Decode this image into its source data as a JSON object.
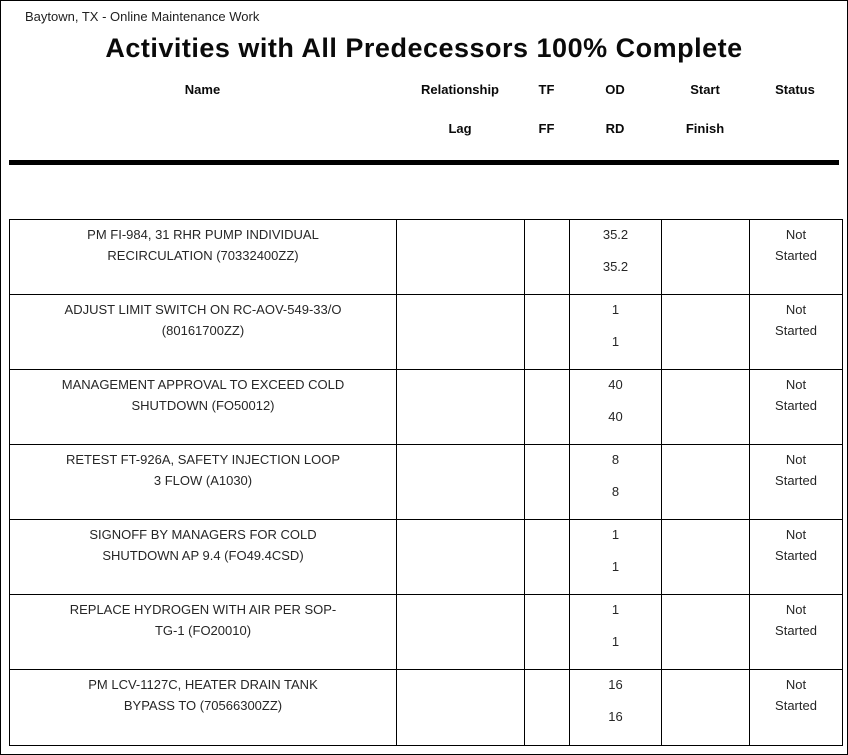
{
  "page": {
    "report_header": "Baytown, TX - Online Maintenance Work",
    "title": "Activities with All Predecessors 100% Complete"
  },
  "table": {
    "headers": [
      {
        "top": "Name",
        "bottom": ""
      },
      {
        "top": "Relationship",
        "bottom": "Lag"
      },
      {
        "top": "TF",
        "bottom": "FF"
      },
      {
        "top": "OD",
        "bottom": "RD"
      },
      {
        "top": "Start",
        "bottom": "Finish"
      },
      {
        "top": "Status",
        "bottom": ""
      }
    ],
    "rows": [
      {
        "name1": "PM FI-984, 31 RHR PUMP INDIVIDUAL",
        "name2": "RECIRCULATION (70332400ZZ)",
        "od": "35.2",
        "rd": "35.2",
        "status1": "Not",
        "status2": "Started"
      },
      {
        "name1": "ADJUST LIMIT SWITCH ON RC-AOV-549-33/O",
        "name2": "(80161700ZZ)",
        "od": "1",
        "rd": "1",
        "status1": "Not",
        "status2": "Started"
      },
      {
        "name1": "MANAGEMENT APPROVAL TO EXCEED COLD",
        "name2": "SHUTDOWN (FO50012)",
        "od": "40",
        "rd": "40",
        "status1": "Not",
        "status2": "Started"
      },
      {
        "name1": "RETEST FT-926A, SAFETY INJECTION LOOP",
        "name2": "3 FLOW (A1030)",
        "od": "8",
        "rd": "8",
        "status1": "Not",
        "status2": "Started"
      },
      {
        "name1": "SIGNOFF BY MANAGERS FOR COLD",
        "name2": "SHUTDOWN AP 9.4 (FO49.4CSD)",
        "od": "1",
        "rd": "1",
        "status1": "Not",
        "status2": "Started"
      },
      {
        "name1": "REPLACE HYDROGEN WITH AIR PER SOP-",
        "name2": "TG-1 (FO20010)",
        "od": "1",
        "rd": "1",
        "status1": "Not",
        "status2": "Started"
      },
      {
        "name1": "PM LCV-1127C, HEATER DRAIN TANK",
        "name2": "BYPASS TO (70566300ZZ)",
        "od": "16",
        "rd": "16",
        "status1": "Not",
        "status2": "Started"
      }
    ]
  }
}
